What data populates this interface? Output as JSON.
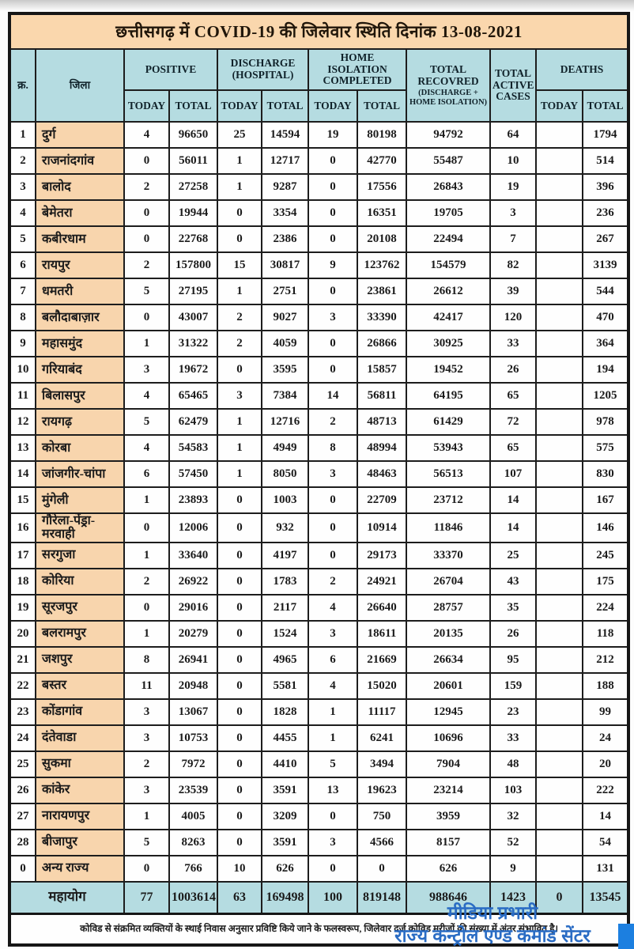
{
  "title": "छत्तीसगढ़ में COVID-19 की जिलेवार स्थिति दिनांक 13-08-2021",
  "columns": {
    "sr": "क्र.",
    "district": "जिला",
    "positive": "POSITIVE",
    "discharge_l1": "DISCHARGE",
    "discharge_l2": "(HOSPITAL)",
    "home_l1": "HOME ISOLATION",
    "home_l2": "COMPLETED",
    "recovered_l1": "TOTAL",
    "recovered_l2": "RECOVRED",
    "recovered_sub": "(DISCHARGE + HOME ISOLATION)",
    "active_l1": "TOTAL",
    "active_l2": "ACTIVE",
    "active_l3": "CASES",
    "deaths": "DEATHS",
    "today": "TODAY",
    "total": "TOTAL"
  },
  "rows": [
    [
      "1",
      "दुर्ग",
      "4",
      "96650",
      "25",
      "14594",
      "19",
      "80198",
      "94792",
      "64",
      "",
      "1794"
    ],
    [
      "2",
      "राजनांदगांव",
      "0",
      "56011",
      "1",
      "12717",
      "0",
      "42770",
      "55487",
      "10",
      "",
      "514"
    ],
    [
      "3",
      "बालोद",
      "2",
      "27258",
      "1",
      "9287",
      "0",
      "17556",
      "26843",
      "19",
      "",
      "396"
    ],
    [
      "4",
      "बेमेतरा",
      "0",
      "19944",
      "0",
      "3354",
      "0",
      "16351",
      "19705",
      "3",
      "",
      "236"
    ],
    [
      "5",
      "कबीरधाम",
      "0",
      "22768",
      "0",
      "2386",
      "0",
      "20108",
      "22494",
      "7",
      "",
      "267"
    ],
    [
      "6",
      "रायपुर",
      "2",
      "157800",
      "15",
      "30817",
      "9",
      "123762",
      "154579",
      "82",
      "",
      "3139"
    ],
    [
      "7",
      "धमतरी",
      "5",
      "27195",
      "1",
      "2751",
      "0",
      "23861",
      "26612",
      "39",
      "",
      "544"
    ],
    [
      "8",
      "बलौदाबाज़ार",
      "0",
      "43007",
      "2",
      "9027",
      "3",
      "33390",
      "42417",
      "120",
      "",
      "470"
    ],
    [
      "9",
      "महासमुंद",
      "1",
      "31322",
      "2",
      "4059",
      "0",
      "26866",
      "30925",
      "33",
      "",
      "364"
    ],
    [
      "10",
      "गरियाबंद",
      "3",
      "19672",
      "0",
      "3595",
      "0",
      "15857",
      "19452",
      "26",
      "",
      "194"
    ],
    [
      "11",
      "बिलासपुर",
      "4",
      "65465",
      "3",
      "7384",
      "14",
      "56811",
      "64195",
      "65",
      "",
      "1205"
    ],
    [
      "12",
      "रायगढ़",
      "5",
      "62479",
      "1",
      "12716",
      "2",
      "48713",
      "61429",
      "72",
      "",
      "978"
    ],
    [
      "13",
      "कोरबा",
      "4",
      "54583",
      "1",
      "4949",
      "8",
      "48994",
      "53943",
      "65",
      "",
      "575"
    ],
    [
      "14",
      "जांजगीर-चांपा",
      "6",
      "57450",
      "1",
      "8050",
      "3",
      "48463",
      "56513",
      "107",
      "",
      "830"
    ],
    [
      "15",
      "मुंगेली",
      "1",
      "23893",
      "0",
      "1003",
      "0",
      "22709",
      "23712",
      "14",
      "",
      "167"
    ],
    [
      "16",
      "गौरेला-पेंड्रा-मरवाही",
      "0",
      "12006",
      "0",
      "932",
      "0",
      "10914",
      "11846",
      "14",
      "",
      "146"
    ],
    [
      "17",
      "सरगुजा",
      "1",
      "33640",
      "0",
      "4197",
      "0",
      "29173",
      "33370",
      "25",
      "",
      "245"
    ],
    [
      "18",
      "कोरिया",
      "2",
      "26922",
      "0",
      "1783",
      "2",
      "24921",
      "26704",
      "43",
      "",
      "175"
    ],
    [
      "19",
      "सूरजपुर",
      "0",
      "29016",
      "0",
      "2117",
      "4",
      "26640",
      "28757",
      "35",
      "",
      "224"
    ],
    [
      "20",
      "बलरामपुर",
      "1",
      "20279",
      "0",
      "1524",
      "3",
      "18611",
      "20135",
      "26",
      "",
      "118"
    ],
    [
      "21",
      "जशपुर",
      "8",
      "26941",
      "0",
      "4965",
      "6",
      "21669",
      "26634",
      "95",
      "",
      "212"
    ],
    [
      "22",
      "बस्तर",
      "11",
      "20948",
      "0",
      "5581",
      "4",
      "15020",
      "20601",
      "159",
      "",
      "188"
    ],
    [
      "23",
      "कोंडागांव",
      "3",
      "13067",
      "0",
      "1828",
      "1",
      "11117",
      "12945",
      "23",
      "",
      "99"
    ],
    [
      "24",
      "दंतेवाडा",
      "3",
      "10753",
      "0",
      "4455",
      "1",
      "6241",
      "10696",
      "33",
      "",
      "24"
    ],
    [
      "25",
      "सुकमा",
      "2",
      "7972",
      "0",
      "4410",
      "5",
      "3494",
      "7904",
      "48",
      "",
      "20"
    ],
    [
      "26",
      "कांकेर",
      "3",
      "23539",
      "0",
      "3591",
      "13",
      "19623",
      "23214",
      "103",
      "",
      "222"
    ],
    [
      "27",
      "नारायणपुर",
      "1",
      "4005",
      "0",
      "3209",
      "0",
      "750",
      "3959",
      "32",
      "",
      "14"
    ],
    [
      "28",
      "बीजापुर",
      "5",
      "8263",
      "0",
      "3591",
      "3",
      "4566",
      "8157",
      "52",
      "",
      "54"
    ],
    [
      "0",
      "अन्य राज्य",
      "0",
      "766",
      "10",
      "626",
      "0",
      "0",
      "626",
      "9",
      "",
      "131"
    ]
  ],
  "total_row": {
    "label": "महायोग",
    "values": [
      "77",
      "1003614",
      "63",
      "169498",
      "100",
      "819148",
      "988646",
      "1423",
      "0",
      "13545"
    ]
  },
  "footnote": "कोविड से संक्रमित व्यक्तियों के स्थाई निवास अनुसार प्रविष्टि किये जाने के फलस्वरूप, जिलेवार दर्ज कोविड मरीजों की संख्या में अंतर संभावित है।",
  "signature": {
    "line1": "मीडिया प्रभारी",
    "line2": "राज्य कन्ट्रोल एण्ड कमांड सेंटर"
  },
  "colors": {
    "title_bg": "#fad7ad",
    "header_bg": "#b5dce1",
    "district_bg": "#f8d5ad",
    "total_row_bg": "#b5dce1",
    "border": "#1d1d1d",
    "signature_text": "#2a6cc4",
    "corner_accent": "#1c7fe0"
  }
}
